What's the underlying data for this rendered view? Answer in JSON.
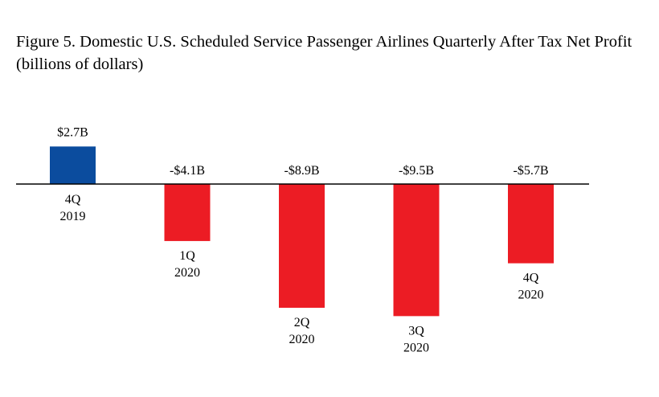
{
  "title_line1": "Figure 5. Domestic U.S. Scheduled Service Passenger Airlines Quarterly After Tax Net Profit",
  "title_line2": "(billions of dollars)",
  "colors": {
    "positive": "#0b4c9e",
    "negative": "#ec1c24",
    "axis": "#000000"
  },
  "chart_data": {
    "type": "bar",
    "title": "Figure 5. Domestic U.S. Scheduled Service Passenger Airlines Quarterly After Tax Net Profit (billions of dollars)",
    "categories": [
      {
        "quarter": "4Q",
        "year": "2019"
      },
      {
        "quarter": "1Q",
        "year": "2020"
      },
      {
        "quarter": "2Q",
        "year": "2020"
      },
      {
        "quarter": "3Q",
        "year": "2020"
      },
      {
        "quarter": "4Q",
        "year": "2020"
      }
    ],
    "values": [
      2.7,
      -4.1,
      -8.9,
      -9.5,
      -5.7
    ],
    "data_labels": [
      "$2.7B",
      "-$4.1B",
      "-$8.9B",
      "-$9.5B",
      "-$5.7B"
    ],
    "xlabel": "",
    "ylabel": "",
    "grid": false,
    "legend": "none"
  }
}
